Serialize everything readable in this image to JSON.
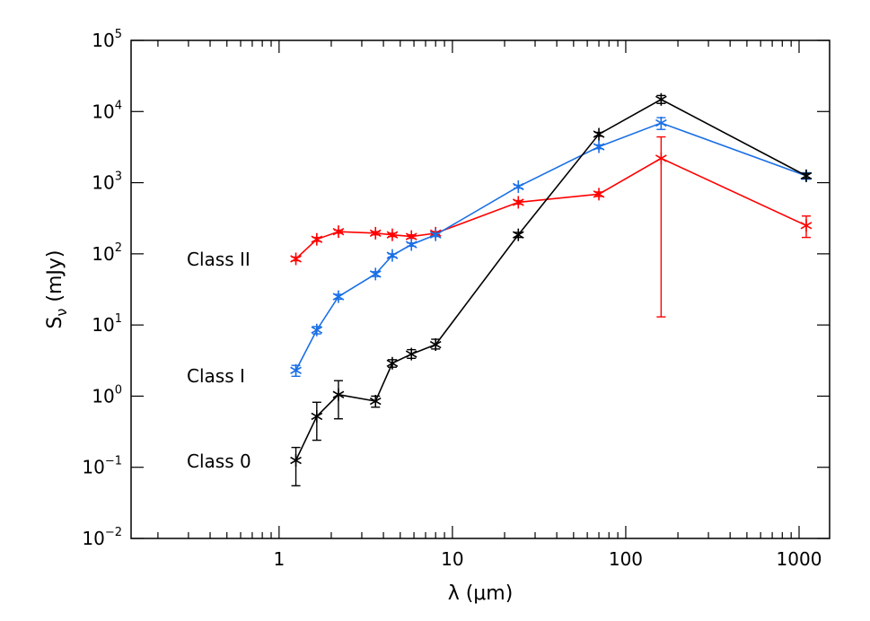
{
  "chart_data": {
    "type": "scatter",
    "xscale": "log",
    "yscale": "log",
    "xlim": [
      0.14,
      1500
    ],
    "ylim": [
      0.01,
      100000
    ],
    "xlabel": "λ (μm)",
    "ylabel": "Sν (mJy)",
    "ylabel_parts": {
      "main": "S",
      "sub": "ν",
      "rest": " (mJy)"
    },
    "x_ticks": [
      {
        "value": 1,
        "label": "1"
      },
      {
        "value": 10,
        "label": "10"
      },
      {
        "value": 100,
        "label": "100"
      },
      {
        "value": 1000,
        "label": "1000"
      }
    ],
    "y_ticks": [
      {
        "value": 0.01,
        "base": "10",
        "exp": "−2"
      },
      {
        "value": 0.1,
        "base": "10",
        "exp": "−1"
      },
      {
        "value": 1,
        "base": "10",
        "exp": "0"
      },
      {
        "value": 10,
        "base": "10",
        "exp": "1"
      },
      {
        "value": 100,
        "base": "10",
        "exp": "2"
      },
      {
        "value": 1000,
        "base": "10",
        "exp": "3"
      },
      {
        "value": 10000,
        "base": "10",
        "exp": "4"
      },
      {
        "value": 100000,
        "base": "10",
        "exp": "5"
      }
    ],
    "grid": false,
    "legend": "inline labels at left",
    "series": [
      {
        "label": "Class II",
        "color": "#ff0000",
        "points": [
          {
            "x": 1.25,
            "y": 85,
            "lo": 80,
            "hi": 90
          },
          {
            "x": 1.65,
            "y": 160,
            "lo": 150,
            "hi": 170
          },
          {
            "x": 2.2,
            "y": 205,
            "lo": 195,
            "hi": 215
          },
          {
            "x": 3.6,
            "y": 195,
            "lo": 185,
            "hi": 205
          },
          {
            "x": 4.5,
            "y": 185,
            "lo": 175,
            "hi": 195
          },
          {
            "x": 5.8,
            "y": 175,
            "lo": 165,
            "hi": 185
          },
          {
            "x": 8.0,
            "y": 195,
            "lo": 185,
            "hi": 205
          },
          {
            "x": 24,
            "y": 530,
            "lo": 500,
            "hi": 560
          },
          {
            "x": 70,
            "y": 690,
            "lo": 640,
            "hi": 740
          },
          {
            "x": 160,
            "y": 2200,
            "lo": 13,
            "hi": 4400
          },
          {
            "x": 1100,
            "y": 250,
            "lo": 170,
            "hi": 340
          }
        ]
      },
      {
        "label": "Class I",
        "color": "#1a6fe6",
        "points": [
          {
            "x": 1.25,
            "y": 2.3,
            "lo": 1.9,
            "hi": 2.7
          },
          {
            "x": 1.65,
            "y": 8.5,
            "lo": 7.5,
            "hi": 9.5
          },
          {
            "x": 2.2,
            "y": 25,
            "lo": 23,
            "hi": 27
          },
          {
            "x": 3.6,
            "y": 52,
            "lo": 48,
            "hi": 56
          },
          {
            "x": 4.5,
            "y": 95,
            "lo": 90,
            "hi": 100
          },
          {
            "x": 5.8,
            "y": 135,
            "lo": 128,
            "hi": 142
          },
          {
            "x": 8.0,
            "y": 185,
            "lo": 175,
            "hi": 195
          },
          {
            "x": 24,
            "y": 880,
            "lo": 840,
            "hi": 920
          },
          {
            "x": 70,
            "y": 3200,
            "lo": 3000,
            "hi": 3400
          },
          {
            "x": 160,
            "y": 6900,
            "lo": 5600,
            "hi": 8200
          },
          {
            "x": 1100,
            "y": 1250,
            "lo": 1120,
            "hi": 1380
          }
        ]
      },
      {
        "label": "Class 0",
        "color": "#000000",
        "points": [
          {
            "x": 1.25,
            "y": 0.125,
            "lo": 0.055,
            "hi": 0.19
          },
          {
            "x": 1.65,
            "y": 0.52,
            "lo": 0.24,
            "hi": 0.82
          },
          {
            "x": 2.2,
            "y": 1.05,
            "lo": 0.48,
            "hi": 1.65
          },
          {
            "x": 3.6,
            "y": 0.85,
            "lo": 0.7,
            "hi": 1.0
          },
          {
            "x": 4.5,
            "y": 2.9,
            "lo": 2.55,
            "hi": 3.25
          },
          {
            "x": 5.8,
            "y": 3.9,
            "lo": 3.4,
            "hi": 4.5
          },
          {
            "x": 8.0,
            "y": 5.3,
            "lo": 4.6,
            "hi": 6.3
          },
          {
            "x": 24,
            "y": 185,
            "lo": 170,
            "hi": 200
          },
          {
            "x": 70,
            "y": 4800,
            "lo": 4500,
            "hi": 5100
          },
          {
            "x": 160,
            "y": 14800,
            "lo": 13000,
            "hi": 16800
          },
          {
            "x": 1100,
            "y": 1250,
            "lo": 1150,
            "hi": 1350
          }
        ]
      }
    ]
  }
}
